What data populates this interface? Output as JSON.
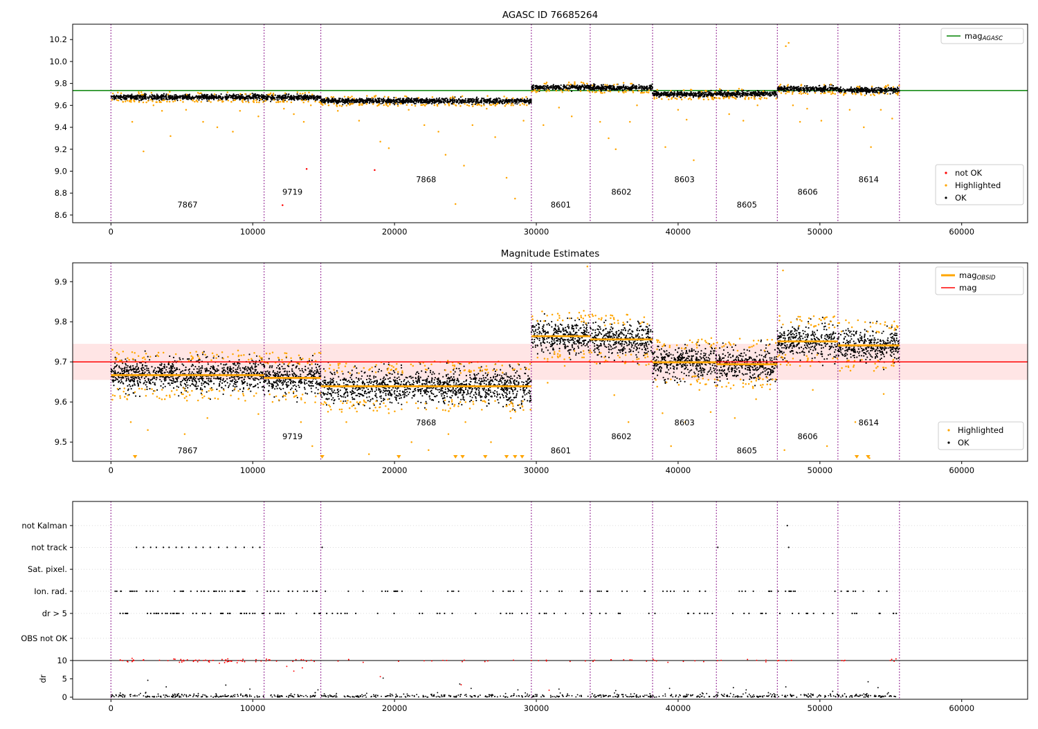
{
  "window": {
    "title": "AGASC ID 76685264"
  },
  "colors": {
    "background": "#ffffff",
    "ok": "#000000",
    "highlighted": "#ffa500",
    "not_ok": "#ff0000",
    "mag_agasc": "#008000",
    "mag": "#ff0000",
    "obsid": "#ffa500",
    "divider": "#800080",
    "frame": "#000000",
    "grid": "#cccccc"
  },
  "observations": [
    {
      "obsid": "7867",
      "start": 0,
      "end": 10800,
      "mag": 9.675,
      "mag_obsid": 9.667,
      "label_level": 0
    },
    {
      "obsid": "9719",
      "start": 10800,
      "end": 14800,
      "mag": 9.672,
      "mag_obsid": 9.66,
      "label_level": 1
    },
    {
      "obsid": "7868",
      "start": 14800,
      "end": 29650,
      "mag": 9.64,
      "mag_obsid": 9.639,
      "label_level": 2
    },
    {
      "obsid": "8601",
      "start": 29650,
      "end": 33800,
      "mag": 9.765,
      "mag_obsid": 9.764,
      "label_level": 0
    },
    {
      "obsid": "8602",
      "start": 33800,
      "end": 38200,
      "mag": 9.76,
      "mag_obsid": 9.756,
      "label_level": 1
    },
    {
      "obsid": "8603",
      "start": 38200,
      "end": 42700,
      "mag": 9.7,
      "mag_obsid": 9.699,
      "label_level": 2
    },
    {
      "obsid": "8605",
      "start": 42700,
      "end": 47000,
      "mag": 9.705,
      "mag_obsid": 9.694,
      "label_level": 0
    },
    {
      "obsid": "8606",
      "start": 47000,
      "end": 51270,
      "mag": 9.75,
      "mag_obsid": 9.751,
      "label_level": 1
    },
    {
      "obsid": "8614",
      "start": 51270,
      "end": 55610,
      "mag": 9.738,
      "mag_obsid": 9.741,
      "label_level": 2
    }
  ],
  "boundaries": [
    0,
    10800,
    14800,
    29650,
    33800,
    38200,
    42700,
    47000,
    51270,
    55610
  ],
  "chart_data": [
    {
      "type": "scatter",
      "title": "AGASC ID 76685264",
      "xlim": [
        -2700,
        64650
      ],
      "ylim": [
        8.53,
        10.34
      ],
      "xticks": [
        0,
        10000,
        20000,
        30000,
        40000,
        50000,
        60000
      ],
      "yticks": [
        8.6,
        8.8,
        9.0,
        9.2,
        9.4,
        9.6,
        9.8,
        10.0,
        10.2
      ],
      "mag_agasc": 9.735,
      "band_sigma": 0.012,
      "point_spacing": 14,
      "label_levels_y": [
        8.67,
        8.785,
        8.9
      ],
      "legend_line": {
        "main": "mag",
        "sub": "AGASC"
      },
      "legend_points": [
        {
          "label": "not OK",
          "color": "not_ok"
        },
        {
          "label": "Highlighted",
          "color": "highlighted"
        },
        {
          "label": "OK",
          "color": "ok"
        }
      ],
      "not_ok_points": [
        [
          12100,
          8.69
        ],
        [
          13800,
          9.02
        ],
        [
          18600,
          9.01
        ]
      ],
      "highlighted_outliers": [
        [
          1500,
          9.45
        ],
        [
          2300,
          9.18
        ],
        [
          3000,
          9.6
        ],
        [
          3600,
          9.55
        ],
        [
          4200,
          9.32
        ],
        [
          5300,
          9.56
        ],
        [
          6500,
          9.45
        ],
        [
          7500,
          9.4
        ],
        [
          8600,
          9.36
        ],
        [
          9100,
          9.55
        ],
        [
          10400,
          9.5
        ],
        [
          12200,
          9.57
        ],
        [
          12900,
          9.52
        ],
        [
          13600,
          9.45
        ],
        [
          14100,
          9.6
        ],
        [
          16000,
          9.55
        ],
        [
          17500,
          9.46
        ],
        [
          19000,
          9.27
        ],
        [
          19600,
          9.21
        ],
        [
          21000,
          9.56
        ],
        [
          22100,
          9.42
        ],
        [
          23100,
          9.36
        ],
        [
          23600,
          9.15
        ],
        [
          24300,
          8.7
        ],
        [
          24900,
          9.05
        ],
        [
          25500,
          9.42
        ],
        [
          26500,
          9.57
        ],
        [
          27100,
          9.31
        ],
        [
          27900,
          8.94
        ],
        [
          28500,
          8.75
        ],
        [
          29100,
          9.46
        ],
        [
          30500,
          9.42
        ],
        [
          31600,
          9.58
        ],
        [
          32500,
          9.5
        ],
        [
          34500,
          9.45
        ],
        [
          35100,
          9.3
        ],
        [
          35600,
          9.2
        ],
        [
          36600,
          9.45
        ],
        [
          37100,
          9.6
        ],
        [
          39100,
          9.22
        ],
        [
          40000,
          9.56
        ],
        [
          40600,
          9.47
        ],
        [
          41100,
          9.1
        ],
        [
          43600,
          9.52
        ],
        [
          44600,
          9.46
        ],
        [
          45600,
          9.6
        ],
        [
          47600,
          10.14
        ],
        [
          47800,
          10.17
        ],
        [
          48100,
          9.6
        ],
        [
          48600,
          9.45
        ],
        [
          49100,
          9.57
        ],
        [
          50100,
          9.46
        ],
        [
          52100,
          9.56
        ],
        [
          53100,
          9.4
        ],
        [
          53600,
          9.22
        ],
        [
          54300,
          9.56
        ],
        [
          55100,
          9.48
        ]
      ]
    },
    {
      "type": "scatter",
      "title": "Magnitude Estimates",
      "xlim": [
        -2700,
        64650
      ],
      "ylim": [
        9.452,
        9.947
      ],
      "xticks": [
        0,
        10000,
        20000,
        30000,
        40000,
        50000,
        60000
      ],
      "yticks": [
        9.5,
        9.6,
        9.7,
        9.8,
        9.9
      ],
      "mag": 9.7,
      "mag_band": [
        9.655,
        9.745
      ],
      "band_sigma": 0.02,
      "point_spacing": 12,
      "label_levels_y": [
        9.472,
        9.507,
        9.542
      ],
      "legend_lines": [
        {
          "main": "mag",
          "sub": "OBSID",
          "color": "obsid",
          "width": 3
        },
        {
          "main": "mag",
          "sub": "",
          "color": "mag",
          "width": 1.5
        }
      ],
      "legend_points": [
        {
          "label": "Highlighted",
          "color": "highlighted"
        },
        {
          "label": "OK",
          "color": "ok"
        }
      ],
      "highlighted_outliers": [
        [
          1400,
          9.55
        ],
        [
          2600,
          9.53
        ],
        [
          3800,
          9.607
        ],
        [
          5200,
          9.52
        ],
        [
          6800,
          9.56
        ],
        [
          9000,
          9.608
        ],
        [
          10400,
          9.57
        ],
        [
          12300,
          9.615
        ],
        [
          13400,
          9.55
        ],
        [
          14200,
          9.49
        ],
        [
          16600,
          9.55
        ],
        [
          18200,
          9.47
        ],
        [
          19600,
          9.572
        ],
        [
          21200,
          9.5
        ],
        [
          22400,
          9.48
        ],
        [
          23800,
          9.52
        ],
        [
          25000,
          9.55
        ],
        [
          26800,
          9.5
        ],
        [
          28200,
          9.56
        ],
        [
          30800,
          9.648
        ],
        [
          32000,
          9.69
        ],
        [
          34800,
          9.7
        ],
        [
          35500,
          9.617
        ],
        [
          36500,
          9.55
        ],
        [
          38900,
          9.572
        ],
        [
          39500,
          9.49
        ],
        [
          40500,
          9.55
        ],
        [
          41500,
          9.63
        ],
        [
          42300,
          9.575
        ],
        [
          44000,
          9.56
        ],
        [
          45500,
          9.607
        ],
        [
          47500,
          9.48
        ],
        [
          48600,
          9.69
        ],
        [
          49500,
          9.63
        ],
        [
          50500,
          9.49
        ],
        [
          52500,
          9.55
        ],
        [
          53500,
          9.46
        ],
        [
          54500,
          9.62
        ],
        [
          55200,
          9.69
        ]
      ],
      "high_outliers": [
        [
          33600,
          9.938
        ],
        [
          47400,
          9.928
        ]
      ],
      "clipped_low_x": [
        1700,
        14900,
        20300,
        24300,
        24800,
        26400,
        27900,
        28500,
        29000,
        52600,
        53400
      ]
    },
    {
      "type": "flags",
      "xlim": [
        -2700,
        64650
      ],
      "xticks": [
        0,
        10000,
        20000,
        30000,
        40000,
        50000,
        60000
      ],
      "rows": [
        {
          "label": "not Kalman",
          "y": 0.878,
          "points_x": [
            47700
          ],
          "clusters": []
        },
        {
          "label": "not track",
          "y": 0.768,
          "points_x": [
            1800,
            2300,
            2800,
            3200,
            3700,
            4100,
            4600,
            5000,
            5500,
            6000,
            6500,
            7000,
            7600,
            8200,
            8800,
            9400,
            10000,
            10500,
            14900,
            42800,
            47800
          ],
          "clusters": []
        },
        {
          "label": "Sat. pixel.",
          "y": 0.657,
          "points_x": [],
          "clusters": []
        },
        {
          "label": "Ion. rad.",
          "y": 0.546,
          "points_x": [],
          "clusters": [
            {
              "x0": 300,
              "x1": 10800,
              "n": 46
            },
            {
              "x0": 10800,
              "x1": 14800,
              "n": 14
            },
            {
              "x0": 14800,
              "x1": 29650,
              "n": 24
            },
            {
              "x0": 29650,
              "x1": 33800,
              "n": 7
            },
            {
              "x0": 33800,
              "x1": 38200,
              "n": 9
            },
            {
              "x0": 38200,
              "x1": 43000,
              "n": 9
            },
            {
              "x0": 43000,
              "x1": 47000,
              "n": 7
            },
            {
              "x0": 47000,
              "x1": 51500,
              "n": 9
            },
            {
              "x0": 51500,
              "x1": 55610,
              "n": 9
            }
          ]
        },
        {
          "label": "dr > 5",
          "y": 0.434,
          "points_x": [],
          "clusters": [
            {
              "x0": 300,
              "x1": 10800,
              "n": 42
            },
            {
              "x0": 10800,
              "x1": 14800,
              "n": 12
            },
            {
              "x0": 14800,
              "x1": 29650,
              "n": 22
            },
            {
              "x0": 29650,
              "x1": 33800,
              "n": 6
            },
            {
              "x0": 33800,
              "x1": 38200,
              "n": 8
            },
            {
              "x0": 38200,
              "x1": 43000,
              "n": 8
            },
            {
              "x0": 43000,
              "x1": 47000,
              "n": 6
            },
            {
              "x0": 47000,
              "x1": 51500,
              "n": 8
            },
            {
              "x0": 51500,
              "x1": 55610,
              "n": 8
            }
          ]
        },
        {
          "label": "OBS not OK",
          "y": 0.308,
          "points_x": [],
          "clusters": []
        }
      ],
      "dr": {
        "label": "dr",
        "ticks": [
          0,
          5,
          10
        ],
        "f0": 0.0105,
        "f10": 0.196,
        "clip_line": 10,
        "red_clusters": [
          {
            "x0": 400,
            "x1": 10800,
            "n": 55
          },
          {
            "x0": 10800,
            "x1": 14800,
            "n": 12
          },
          {
            "x0": 14800,
            "x1": 29650,
            "n": 15
          },
          {
            "x0": 29650,
            "x1": 33800,
            "n": 5
          },
          {
            "x0": 33800,
            "x1": 38200,
            "n": 8
          },
          {
            "x0": 38200,
            "x1": 43100,
            "n": 9
          },
          {
            "x0": 43100,
            "x1": 47000,
            "n": 4
          },
          {
            "x0": 47000,
            "x1": 48200,
            "n": 6
          },
          {
            "x0": 51300,
            "x1": 51900,
            "n": 3
          },
          {
            "x0": 54800,
            "x1": 55610,
            "n": 4
          }
        ],
        "red_points": [
          [
            12400,
            8.4
          ],
          [
            12900,
            7.1
          ],
          [
            13500,
            8.0
          ],
          [
            19000,
            5.6
          ],
          [
            24700,
            3.4
          ],
          [
            30900,
            1.9
          ]
        ],
        "black_base_n": 750,
        "black_spikes": [
          [
            2600,
            4.6
          ],
          [
            3900,
            2.8
          ],
          [
            8100,
            3.3
          ],
          [
            9800,
            2.2
          ],
          [
            14600,
            2.0
          ],
          [
            19200,
            5.2
          ],
          [
            24600,
            3.6
          ],
          [
            25400,
            2.4
          ],
          [
            28700,
            2.0
          ],
          [
            31600,
            2.2
          ],
          [
            35600,
            1.8
          ],
          [
            39400,
            2.4
          ],
          [
            43900,
            2.6
          ],
          [
            44800,
            2.0
          ],
          [
            47600,
            2.8
          ],
          [
            50900,
            1.6
          ],
          [
            53400,
            4.2
          ],
          [
            54100,
            2.6
          ]
        ]
      }
    }
  ]
}
